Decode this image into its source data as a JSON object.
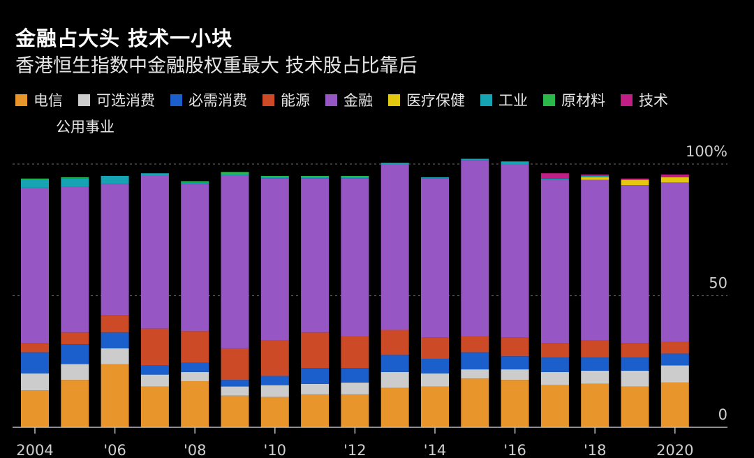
{
  "title": "金融占大头  技术一小块",
  "subtitle": "香港恒生指数中金融股权重最大 技术股占比靠后",
  "chart_data": {
    "type": "bar",
    "stacked": true,
    "title": "金融占大头  技术一小块",
    "subtitle": "香港恒生指数中金融股权重最大 技术股占比靠后",
    "ylim": [
      0,
      100
    ],
    "y_ticks": [
      {
        "value": 100,
        "label": "100%"
      },
      {
        "value": 50,
        "label": "50"
      },
      {
        "value": 0,
        "label": "0"
      }
    ],
    "x_ticks": [
      "2004",
      "'06",
      "'08",
      "'10",
      "'12",
      "'14",
      "'16",
      "'18",
      "2020"
    ],
    "categories": [
      "2004",
      "2005",
      "2006",
      "2007",
      "2008",
      "2009",
      "2010",
      "2011",
      "2012",
      "2013",
      "2014",
      "2015",
      "2016",
      "2017",
      "2018",
      "2019",
      "2020"
    ],
    "series": [
      {
        "name": "电信",
        "color": "#e8952b",
        "values": [
          14,
          18,
          24,
          15.5,
          17.5,
          12,
          11.5,
          12.5,
          12.5,
          15,
          15.5,
          18.5,
          18,
          16,
          16.5,
          15.5,
          17
        ]
      },
      {
        "name": "可选消费",
        "color": "#cccccc",
        "values": [
          6.5,
          6,
          6,
          4.5,
          3.5,
          3.5,
          4.5,
          4,
          4.5,
          6,
          5,
          3.5,
          4,
          5,
          5,
          6,
          6.5
        ]
      },
      {
        "name": "必需消费",
        "color": "#1a5fcc",
        "values": [
          8,
          7.5,
          6,
          3.5,
          3.5,
          2.5,
          3.5,
          6,
          5.5,
          6.5,
          5.5,
          6.5,
          5,
          5.5,
          5,
          5,
          4.5
        ]
      },
      {
        "name": "能源",
        "color": "#cc4a25",
        "values": [
          3.5,
          4.5,
          6.5,
          14,
          12,
          12,
          13.5,
          13.5,
          12,
          9.5,
          8,
          6,
          7,
          5.5,
          6.5,
          5.5,
          4.5
        ]
      },
      {
        "name": "金融",
        "color": "#9656c4",
        "values": [
          59,
          55.5,
          50,
          58,
          56,
          65.5,
          61.5,
          58.5,
          60,
          63,
          60.5,
          67,
          66,
          62,
          61,
          60,
          60.5
        ]
      },
      {
        "name": "医疗保健",
        "color": "#e3c80f",
        "values": [
          0,
          0,
          0,
          0,
          0,
          0,
          0,
          0,
          0,
          0,
          0,
          0,
          0,
          0,
          1,
          2,
          2
        ]
      },
      {
        "name": "工业",
        "color": "#16a4b5",
        "values": [
          3,
          3,
          3,
          1,
          0.5,
          0.5,
          0.5,
          0.5,
          0.5,
          0.5,
          0.5,
          0.5,
          1,
          0.5,
          0.5,
          0,
          0
        ]
      },
      {
        "name": "原材料",
        "color": "#2bb84a",
        "values": [
          0.5,
          0.5,
          0,
          0,
          0.5,
          1,
          0.5,
          0.5,
          0.5,
          0,
          0,
          0,
          0,
          0,
          0,
          0,
          0
        ]
      },
      {
        "name": "技术",
        "color": "#c21f86",
        "values": [
          0,
          0,
          0,
          0,
          0,
          0,
          0,
          0,
          0,
          0,
          0,
          0,
          0,
          2,
          0.5,
          0.5,
          1
        ]
      },
      {
        "name": "公用事业",
        "color": "#000000",
        "values": [
          0,
          0,
          0,
          0,
          0,
          0,
          0,
          0,
          0,
          0,
          0,
          0,
          0,
          0,
          0,
          0,
          0
        ]
      }
    ]
  }
}
